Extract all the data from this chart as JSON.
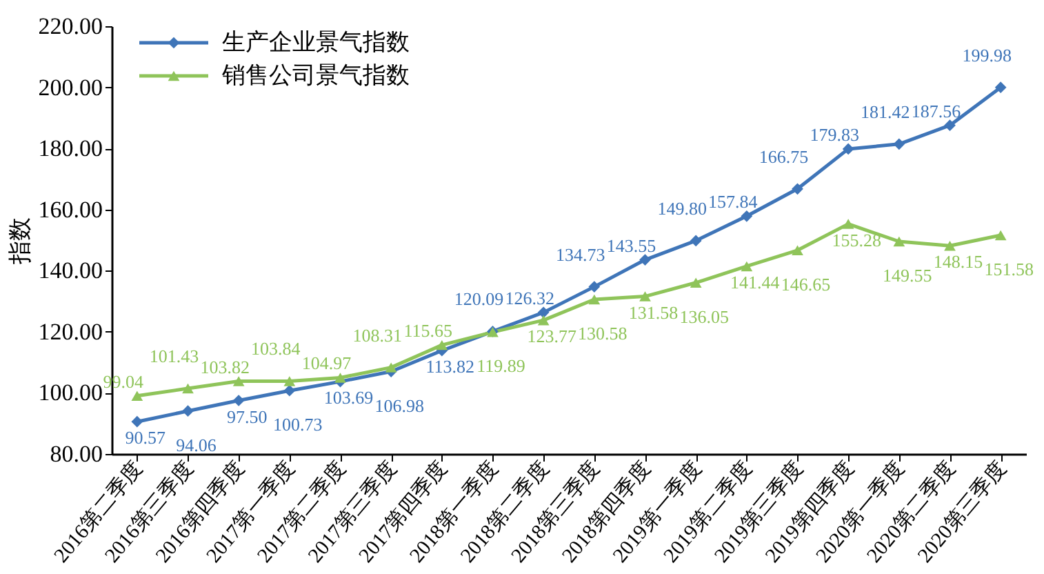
{
  "chart_data": {
    "type": "line",
    "ylabel": "指数",
    "categories": [
      "2016第二季度",
      "2016第三季度",
      "2016第四季度",
      "2017第一季度",
      "2017第二季度",
      "2017第三季度",
      "2017第四季度",
      "2018第一季度",
      "2018第二季度",
      "2018第三季度",
      "2018第四季度",
      "2019第一季度",
      "2019第二季度",
      "2019第三季度",
      "2019第四季度",
      "2020第一季度",
      "2020第二季度",
      "2020第三季度"
    ],
    "series": [
      {
        "name": "生产企业景气指数",
        "color": "#3f75b8",
        "marker": "diamond",
        "values": [
          90.57,
          94.06,
          97.5,
          100.73,
          103.69,
          106.98,
          113.82,
          120.09,
          126.32,
          134.73,
          143.55,
          149.8,
          157.84,
          166.75,
          179.83,
          181.42,
          187.56,
          199.98
        ],
        "value_labels": [
          "90.57",
          "94.06",
          "97.50",
          "100.73",
          "103.69",
          "106.98",
          "113.82",
          "120.09",
          "126.32",
          "134.73",
          "143.55",
          "149.80",
          "157.84",
          "166.75",
          "179.83",
          "181.42",
          "187.56",
          "199.98"
        ]
      },
      {
        "name": "销售公司景气指数",
        "color": "#8fc45a",
        "marker": "triangle",
        "values": [
          99.04,
          101.43,
          103.82,
          103.84,
          104.97,
          108.31,
          115.65,
          119.89,
          123.77,
          130.58,
          131.58,
          136.05,
          141.44,
          146.65,
          155.28,
          149.55,
          148.15,
          151.58
        ],
        "value_labels": [
          "99.04",
          "101.43",
          "103.82",
          "103.84",
          "104.97",
          "108.31",
          "115.65",
          "119.89",
          "123.77",
          "130.58",
          "131.58",
          "136.05",
          "141.44",
          "146.65",
          "155.28",
          "149.55",
          "148.15",
          "151.58"
        ]
      }
    ],
    "ylim": [
      80,
      220
    ],
    "yticks": [
      {
        "value": 80,
        "label": "80.00"
      },
      {
        "value": 100,
        "label": "100.00"
      },
      {
        "value": 120,
        "label": "120.00"
      },
      {
        "value": 140,
        "label": "140.00"
      },
      {
        "value": 160,
        "label": "160.00"
      },
      {
        "value": 180,
        "label": "180.00"
      },
      {
        "value": 200,
        "label": "200.00"
      },
      {
        "value": 220,
        "label": "220.00"
      }
    ],
    "legend": "top left",
    "grid": false
  }
}
